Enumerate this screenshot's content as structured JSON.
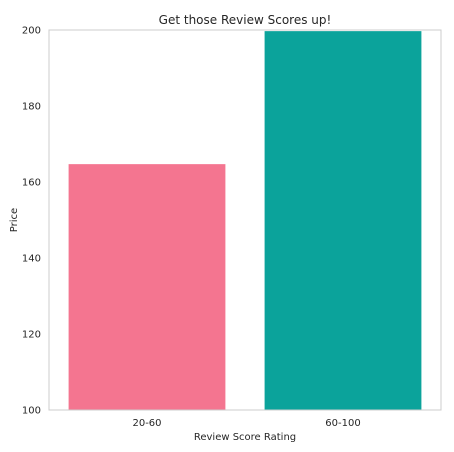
{
  "chart_data": {
    "type": "bar",
    "title": "Get those Review Scores up!",
    "xlabel": "Review Score Rating",
    "ylabel": "Price",
    "categories": [
      "20-60",
      "60-100"
    ],
    "values": [
      164.7,
      199.7
    ],
    "colors": [
      "#f47590",
      "#0ba39b"
    ],
    "ylim": [
      100,
      200
    ],
    "yticks": [
      100,
      120,
      140,
      160,
      180,
      200
    ],
    "ytick_labels": [
      "100",
      "120",
      "140",
      "160",
      "180",
      "200"
    ],
    "grid": false,
    "legend": "none"
  }
}
